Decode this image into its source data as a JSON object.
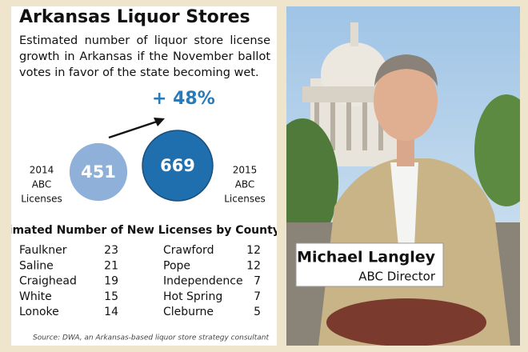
{
  "title": "Arkansas Liquor Stores",
  "subtitle": "Estimated number of liquor store license growth in Arkansas if the November ballot votes in favor of the state becoming wet.",
  "growth": "+ 48%",
  "circles": [
    {
      "label": [
        "2014",
        "ABC",
        "Licenses"
      ],
      "value": 451,
      "color": "#8fb0d8"
    },
    {
      "label": [
        "2015",
        "ABC",
        "Licenses"
      ],
      "value": 669,
      "color": "#1f6fae"
    }
  ],
  "table": {
    "title": "Estimated Number of New Licenses by County",
    "columns": [
      [
        [
          "Faulkner",
          23
        ],
        [
          "Saline",
          21
        ],
        [
          "Craighead",
          19
        ],
        [
          "White",
          15
        ],
        [
          "Lonoke",
          14
        ]
      ],
      [
        [
          "Crawford",
          12
        ],
        [
          "Pope",
          12
        ],
        [
          "Independence",
          7
        ],
        [
          "Hot Spring",
          7
        ],
        [
          "Cleburne",
          5
        ]
      ]
    ]
  },
  "source": "Source: DWA, an Arkansas-based liquor store strategy consultant",
  "caption": {
    "name": "Michael Langley",
    "role": "ABC Director"
  }
}
